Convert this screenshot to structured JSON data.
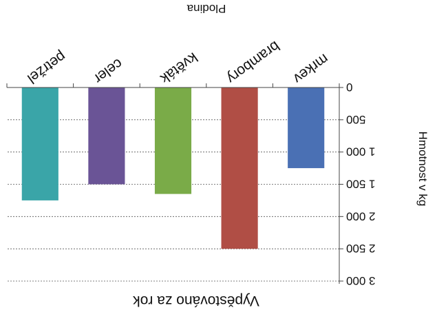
{
  "chart_data": {
    "type": "bar",
    "title": "Vypěstováno za rok",
    "xlabel": "Plodina",
    "ylabel": "Hmotnost v kg",
    "categories": [
      "mrkev",
      "brambory",
      "květák",
      "celer",
      "petržel"
    ],
    "values": [
      1250,
      2500,
      1650,
      1500,
      1750
    ],
    "colors": [
      "#4a70b4",
      "#b04e45",
      "#7aab48",
      "#6a5496",
      "#3aa5a8"
    ],
    "ylim": [
      0,
      3000
    ],
    "ytick_labels": [
      "0",
      "500",
      "1 000",
      "1 500",
      "2 000",
      "2 500",
      "3 000"
    ],
    "grid": true,
    "orientation": "rotated-180"
  }
}
